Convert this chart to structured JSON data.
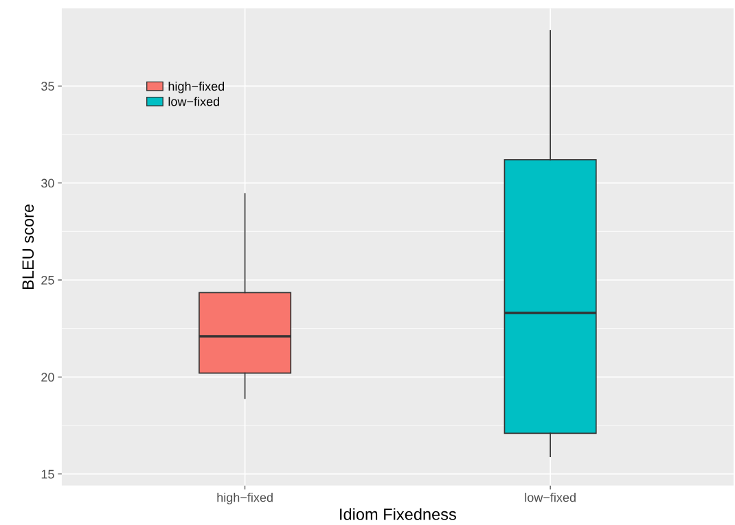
{
  "chart_data": {
    "type": "box",
    "xlabel": "Idiom Fixedness",
    "ylabel": "BLEU score",
    "categories": [
      "high−fixed",
      "low−fixed"
    ],
    "series": [
      {
        "name": "high−fixed",
        "color": "#f8766d",
        "boxes": [
          {
            "low": 18.9,
            "q1": 20.2,
            "median": 22.1,
            "q3": 24.35,
            "high": 29.45
          },
          null
        ]
      },
      {
        "name": "low−fixed",
        "color": "#00bfc4",
        "boxes": [
          null,
          {
            "low": 15.9,
            "q1": 17.1,
            "median": 23.3,
            "q3": 31.2,
            "high": 37.85
          }
        ]
      }
    ],
    "ylim": [
      14.4,
      39.0
    ],
    "yticks": [
      15,
      20,
      25,
      30,
      35
    ],
    "grid": true,
    "legend": "top left"
  }
}
